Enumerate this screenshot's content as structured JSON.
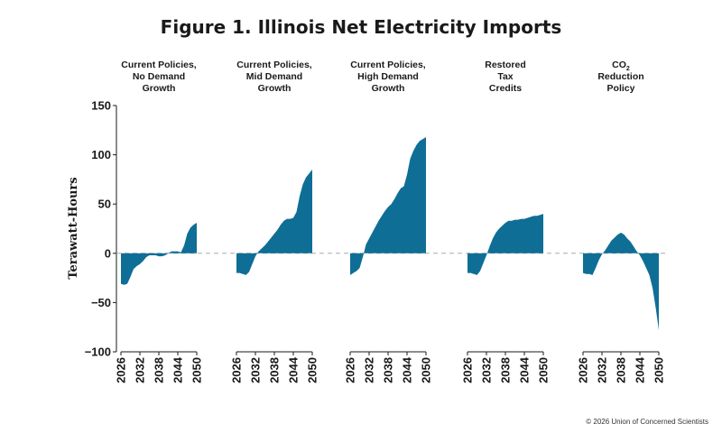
{
  "chart_data": {
    "type": "area",
    "title": "Figure 1. Illinois Net Electricity Imports",
    "ylabel": "Terawatt-Hours",
    "ylim": [
      -100,
      150
    ],
    "yticks": [
      150,
      100,
      50,
      0,
      -50,
      -100
    ],
    "x": [
      2026,
      2027,
      2028,
      2029,
      2030,
      2031,
      2032,
      2033,
      2034,
      2035,
      2036,
      2037,
      2038,
      2039,
      2040,
      2041,
      2042,
      2043,
      2044,
      2045,
      2046,
      2047,
      2048,
      2049,
      2050
    ],
    "xticks": [
      2026,
      2032,
      2038,
      2044,
      2050
    ],
    "color": "#0f6e96",
    "grid": false,
    "series": [
      {
        "title_lines": [
          "Current Policies,",
          "No Demand",
          "Growth"
        ],
        "values": [
          -31,
          -32,
          -31,
          -24,
          -16,
          -13,
          -11,
          -8,
          -4,
          -2,
          -2,
          -2,
          -3,
          -3,
          -2,
          0,
          2,
          2,
          2,
          1,
          8,
          20,
          26,
          29,
          31
        ]
      },
      {
        "title_lines": [
          "Current Policies,",
          "Mid Demand",
          "Growth"
        ],
        "values": [
          -20,
          -20,
          -21,
          -22,
          -19,
          -11,
          -3,
          2,
          5,
          8,
          12,
          16,
          20,
          24,
          29,
          33,
          35,
          35,
          36,
          42,
          58,
          70,
          77,
          81,
          85
        ]
      },
      {
        "title_lines": [
          "Current Policies,",
          "High Demand",
          "Growth"
        ],
        "values": [
          -22,
          -20,
          -18,
          -15,
          -4,
          9,
          15,
          21,
          27,
          33,
          38,
          43,
          47,
          50,
          55,
          61,
          66,
          68,
          80,
          96,
          104,
          110,
          114,
          116,
          118
        ]
      },
      {
        "title_lines": [
          "Restored",
          "Tax",
          "Credits"
        ],
        "values": [
          -20,
          -20,
          -21,
          -22,
          -18,
          -10,
          -2,
          7,
          15,
          21,
          25,
          28,
          31,
          33,
          33,
          34,
          34,
          35,
          35,
          36,
          37,
          38,
          38,
          39,
          40
        ]
      },
      {
        "title_lines": [
          "CO",
          "Reduction",
          "Policy"
        ],
        "title_subscript": "2",
        "values": [
          -20,
          -21,
          -21,
          -22,
          -15,
          -7,
          -1,
          3,
          8,
          13,
          16,
          19,
          21,
          19,
          15,
          12,
          7,
          2,
          -2,
          -8,
          -15,
          -22,
          -35,
          -55,
          -78
        ]
      }
    ]
  },
  "credit": "© 2026 Union of Concerned Scientists"
}
